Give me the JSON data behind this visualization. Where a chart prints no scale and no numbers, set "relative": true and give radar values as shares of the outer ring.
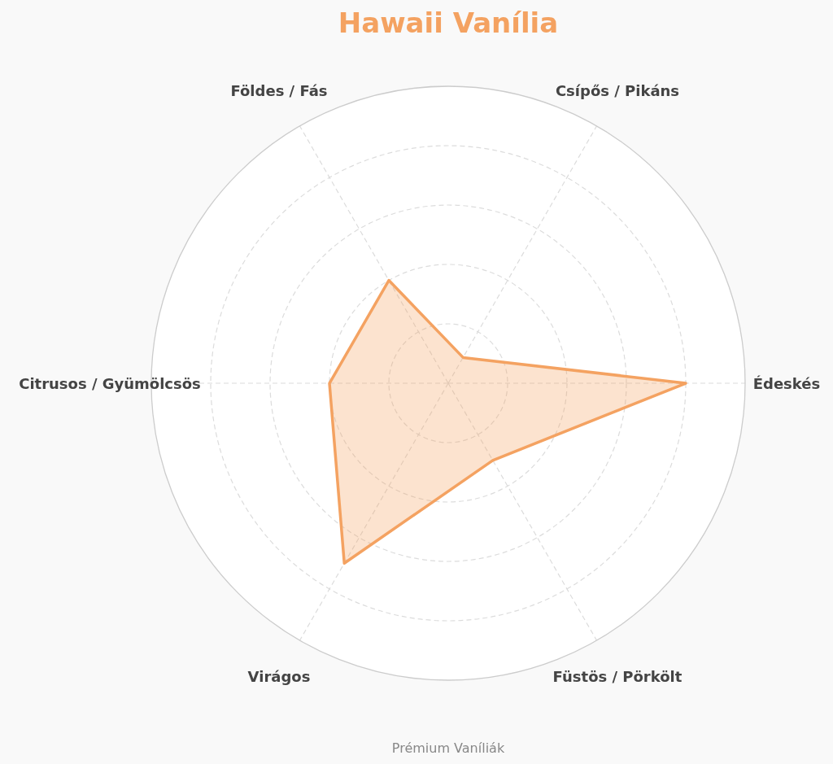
{
  "chart_data": {
    "type": "radar",
    "title": "Hawaii Vanília",
    "categories": [
      "Csípős / Pikáns",
      "Édeskés",
      "Füstös / Pörkölt",
      "Virágos",
      "Citrusos / Gyümölcsös",
      "Földes / Fás"
    ],
    "series": [
      {
        "color": "#f4a261",
        "values": [
          0.1,
          0.8,
          0.3,
          0.7,
          0.4,
          0.4
        ]
      }
    ],
    "relative": true,
    "grid": true,
    "annotations": [
      "Prémium Vaníliák"
    ]
  }
}
